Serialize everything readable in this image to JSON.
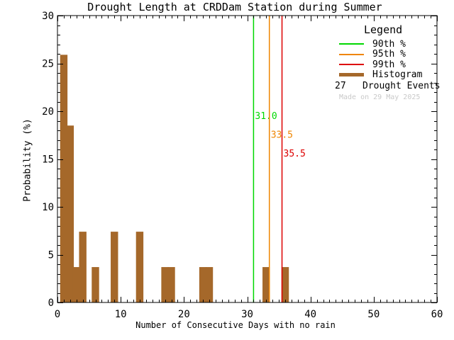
{
  "chart_data": {
    "type": "bar",
    "title": "Drought Length at CRDDam Station during Summer",
    "xlabel": "Number of Consecutive Days with no rain",
    "ylabel": "Probability (%)",
    "xlim": [
      0,
      60
    ],
    "ylim": [
      0,
      30
    ],
    "x_major_ticks": [
      0,
      10,
      20,
      30,
      40,
      50,
      60
    ],
    "y_major_ticks": [
      0,
      5,
      10,
      15,
      20,
      25,
      30
    ],
    "x_minor_step": 1,
    "y_minor_step": 1,
    "grid": false,
    "bin_width": 1,
    "histogram_color": "#a5682a",
    "frame_color": "#000000",
    "bars": [
      {
        "x": 1,
        "pct": 25.9
      },
      {
        "x": 2,
        "pct": 18.5
      },
      {
        "x": 3,
        "pct": 3.7
      },
      {
        "x": 4,
        "pct": 7.4
      },
      {
        "x": 6,
        "pct": 3.7
      },
      {
        "x": 9,
        "pct": 7.4
      },
      {
        "x": 13,
        "pct": 7.4
      },
      {
        "x": 17,
        "pct": 3.7
      },
      {
        "x": 18,
        "pct": 3.7
      },
      {
        "x": 23,
        "pct": 3.7
      },
      {
        "x": 24,
        "pct": 3.7
      },
      {
        "x": 33,
        "pct": 3.7
      },
      {
        "x": 36,
        "pct": 3.7
      }
    ],
    "percentiles": [
      {
        "name": "90th %",
        "value": 31.0,
        "label": "31.0",
        "color": "#00d800"
      },
      {
        "name": "95th %",
        "value": 33.5,
        "label": "33.5",
        "color": "#ef8500"
      },
      {
        "name": "99th %",
        "value": 35.5,
        "label": "35.5",
        "color": "#dd0000"
      }
    ],
    "legend": {
      "title": "Legend",
      "position": "top-right",
      "items": [
        {
          "label": "90th %",
          "color": "#00d800",
          "swatch": "line"
        },
        {
          "label": "95th %",
          "color": "#ef8500",
          "swatch": "line"
        },
        {
          "label": "99th %",
          "color": "#dd0000",
          "swatch": "line"
        },
        {
          "label": "Histogram",
          "color": "#a5682a",
          "swatch": "thick"
        }
      ],
      "events_count": "27",
      "events_label": "Drought Events",
      "made_on": "Made on 29 May 2025"
    }
  }
}
